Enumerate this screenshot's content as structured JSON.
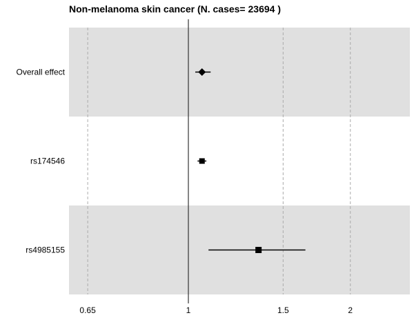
{
  "chart_data": {
    "type": "forest",
    "title": "Non-melanoma skin cancer  (N. cases= 23694 )",
    "xlabel": "",
    "ylabel": "",
    "x_scale": "log",
    "xlim": [
      0.6,
      2.58
    ],
    "x_ticks": [
      0.65,
      1,
      1.5,
      2
    ],
    "x_tick_labels": [
      "0.65",
      "1",
      "1.5",
      "2"
    ],
    "reference_line": 1,
    "grid": "vertical-dashed",
    "legend": "none",
    "rows": [
      {
        "label": "Overall effect",
        "estimate": 1.06,
        "ci_low": 1.03,
        "ci_high": 1.1,
        "marker": "diamond",
        "shaded": true
      },
      {
        "label": "rs174546",
        "estimate": 1.06,
        "ci_low": 1.04,
        "ci_high": 1.08,
        "marker": "square",
        "shaded": false
      },
      {
        "label": "rs4985155",
        "estimate": 1.35,
        "ci_low": 1.09,
        "ci_high": 1.65,
        "marker": "square",
        "shaded": true
      }
    ],
    "colors": {
      "band": "#e0e0e0",
      "marker": "#000000",
      "grid": "#aaaaaa"
    }
  }
}
